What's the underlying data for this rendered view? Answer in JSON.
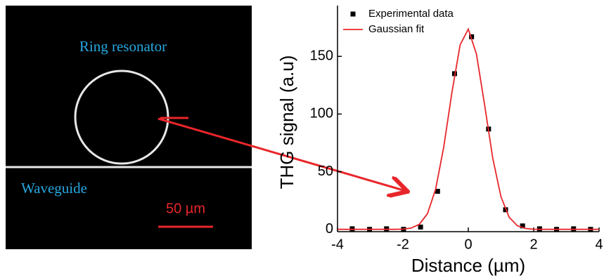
{
  "image": {
    "ring_label": "Ring resonator",
    "waveguide_label": "Waveguide",
    "scale_label": "50 µm"
  },
  "chart_data": {
    "type": "scatter",
    "x_label": "Distance (µm)",
    "y_label": "THG signal (a.u)",
    "xlim": [
      -4,
      4
    ],
    "ylim": [
      -2,
      194
    ],
    "xticks": [
      -4,
      -2,
      0,
      2,
      4
    ],
    "yticks": [
      0,
      50,
      100,
      150
    ],
    "legend": "top-left",
    "series": [
      {
        "name": "Experimental data",
        "type": "scatter",
        "color": "#000000",
        "x": [
          -3.55,
          -3.02,
          -2.5,
          -1.98,
          -1.46,
          -0.94,
          -0.42,
          0.1,
          0.62,
          1.14,
          1.66,
          2.18,
          2.7,
          3.22,
          3.74
        ],
        "values": [
          0.5,
          0,
          0.5,
          0,
          2,
          33,
          135,
          167,
          87,
          17,
          3,
          0.5,
          0,
          0.5,
          0
        ]
      },
      {
        "name": "Gaussian fit",
        "type": "line",
        "color": "#e8262a",
        "x": [
          -4,
          -3.75,
          -3.5,
          -3.25,
          -3,
          -2.75,
          -2.5,
          -2.25,
          -2,
          -1.75,
          -1.5,
          -1.25,
          -1,
          -0.75,
          -0.5,
          -0.25,
          0,
          0.25,
          0.5,
          0.75,
          1,
          1.25,
          1.5,
          1.75,
          2,
          2.25,
          2.5,
          2.75,
          3,
          3.25,
          3.5,
          3.75,
          4
        ],
        "values": [
          0,
          0,
          0,
          0,
          0,
          0,
          0,
          0,
          0.2,
          1.1,
          4.3,
          13.6,
          34.7,
          71.5,
          119,
          160,
          173.7,
          152,
          107.5,
          61.3,
          28.2,
          10.5,
          3.1,
          0.8,
          0.1,
          0,
          0,
          0,
          0,
          0,
          0,
          0,
          0
        ]
      }
    ]
  }
}
